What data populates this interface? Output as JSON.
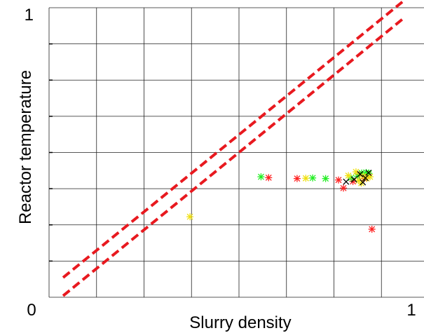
{
  "chart_data": {
    "type": "scatter",
    "title": "",
    "xlabel": "Slurry density",
    "ylabel": "Reactor temperature",
    "xlim": [
      0,
      1
    ],
    "ylim": [
      0,
      1
    ],
    "grid": true,
    "x_tick_labels": [
      {
        "value": 0,
        "label": "0"
      },
      {
        "value": 1,
        "label": "1"
      }
    ],
    "y_tick_labels": [
      {
        "value": 1,
        "label": "1"
      }
    ],
    "grid_divisions": 8,
    "reference_lines": [
      {
        "name": "upper-boundary",
        "color": "#e8191f",
        "style": "dashed",
        "points": [
          [
            0.037,
            0.068
          ],
          [
            0.93,
            1.02
          ]
        ]
      },
      {
        "name": "lower-boundary",
        "color": "#e8191f",
        "style": "dashed",
        "points": [
          [
            0.037,
            0.005
          ],
          [
            0.93,
            0.96
          ]
        ]
      }
    ],
    "series": [
      {
        "color": "#ff2020",
        "marker": "asterisk",
        "points": [
          [
            0.578,
            0.413
          ],
          [
            0.653,
            0.41
          ],
          [
            0.762,
            0.405
          ],
          [
            0.775,
            0.377
          ],
          [
            0.8,
            0.4
          ],
          [
            0.818,
            0.425
          ],
          [
            0.83,
            0.41
          ],
          [
            0.84,
            0.423
          ],
          [
            0.85,
            0.235
          ]
        ]
      },
      {
        "color": "#22ee22",
        "marker": "asterisk",
        "points": [
          [
            0.558,
            0.416
          ],
          [
            0.694,
            0.412
          ],
          [
            0.728,
            0.41
          ],
          [
            0.795,
            0.412
          ],
          [
            0.812,
            0.418
          ],
          [
            0.823,
            0.429
          ],
          [
            0.835,
            0.431
          ],
          [
            0.842,
            0.428
          ]
        ]
      },
      {
        "color": "#f0e010",
        "marker": "asterisk",
        "points": [
          [
            0.371,
            0.278
          ],
          [
            0.676,
            0.411
          ],
          [
            0.788,
            0.42
          ],
          [
            0.808,
            0.433
          ],
          [
            0.815,
            0.403
          ],
          [
            0.822,
            0.394
          ],
          [
            0.827,
            0.418
          ],
          [
            0.836,
            0.41
          ],
          [
            0.845,
            0.416
          ]
        ]
      },
      {
        "color": "#000000",
        "marker": "cross",
        "points": [
          [
            0.782,
            0.399
          ],
          [
            0.803,
            0.407
          ],
          [
            0.819,
            0.425
          ],
          [
            0.826,
            0.397
          ],
          [
            0.833,
            0.412
          ],
          [
            0.841,
            0.43
          ]
        ]
      }
    ]
  }
}
